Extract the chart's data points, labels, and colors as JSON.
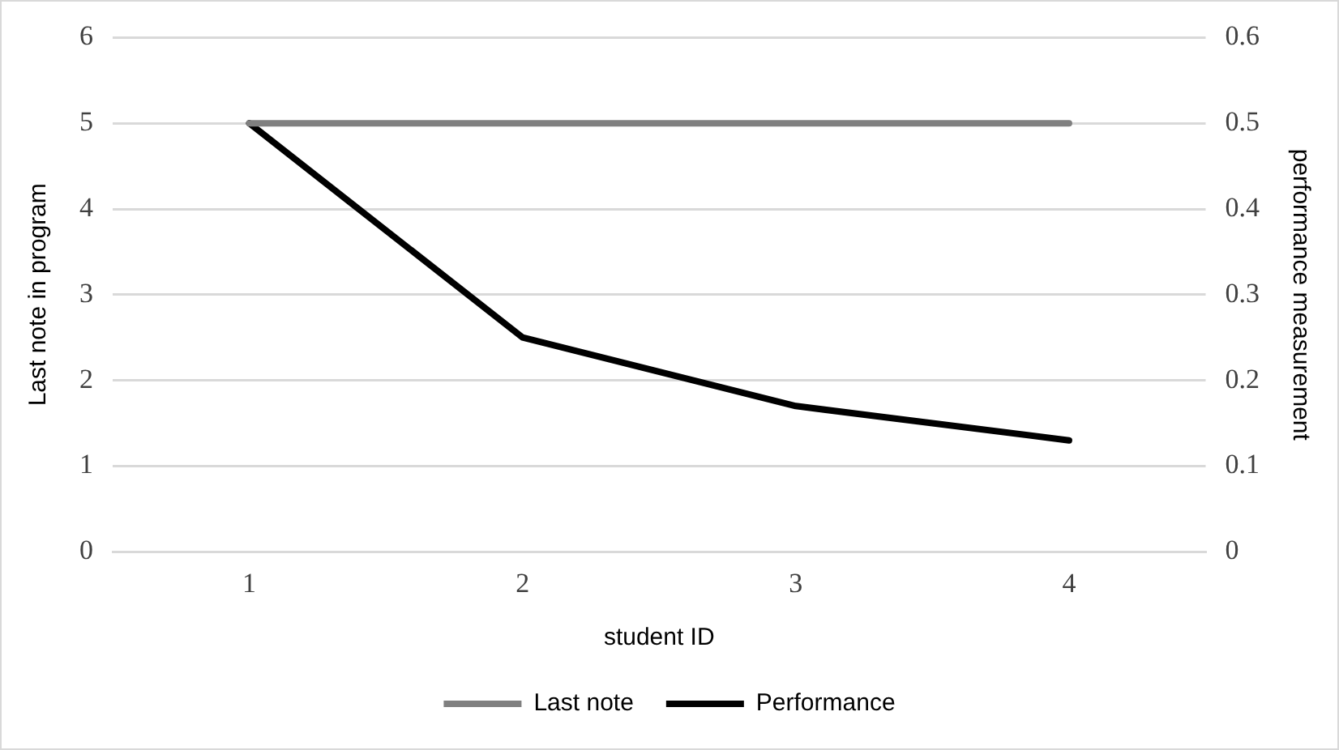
{
  "chart_data": {
    "type": "line",
    "xlabel": "student ID",
    "ylabel": "Last note in program",
    "y2label": "performance measurement",
    "categories": [
      "1",
      "2",
      "3",
      "4"
    ],
    "series": [
      {
        "name": "Last note",
        "color": "#808080",
        "values": [
          5,
          5,
          5,
          5
        ]
      },
      {
        "name": "Performance",
        "color": "#000000",
        "values": [
          0.5,
          0.25,
          0.17,
          0.13
        ],
        "axis": "y2"
      }
    ],
    "ylim": [
      0,
      6
    ],
    "yticks": [
      0,
      1,
      2,
      3,
      4,
      5,
      6
    ],
    "y2lim": [
      0,
      0.6
    ],
    "y2ticks": [
      0,
      0.1,
      0.2,
      0.3,
      0.4,
      0.5,
      0.6
    ],
    "grid": "y",
    "legend": "bottom",
    "marker": "none",
    "line_style": "solid"
  }
}
